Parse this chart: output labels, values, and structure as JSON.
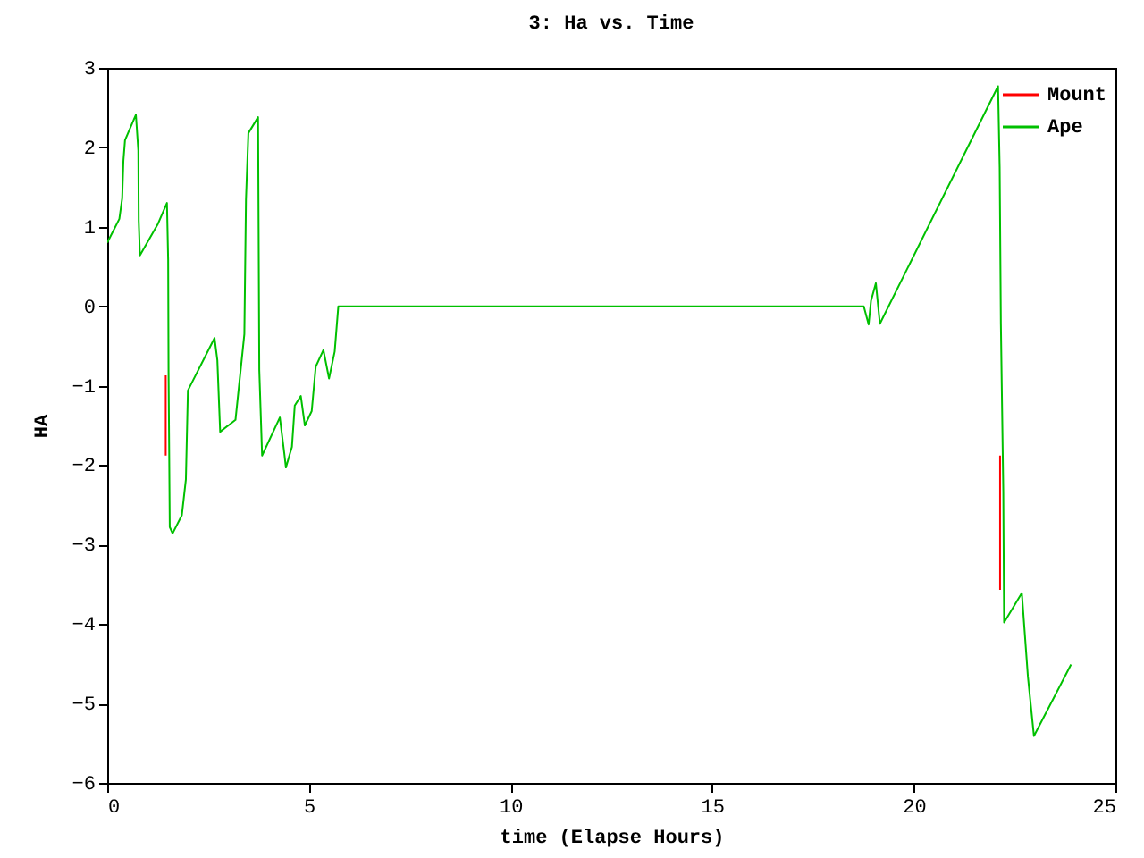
{
  "chart_data": {
    "type": "line",
    "title": "3: Ha vs. Time",
    "xlabel": "time (Elapse Hours)",
    "ylabel": "HA",
    "xlim": [
      0,
      25
    ],
    "xticks": [
      0,
      5,
      10,
      15,
      20,
      25
    ],
    "ylim": [
      -6,
      3
    ],
    "yticks": [
      -6,
      -5,
      -4,
      -3,
      -2,
      -1,
      0,
      1,
      2,
      3
    ],
    "grid": false,
    "legend": "top right",
    "line_style": "solid",
    "marker": "none",
    "series": [
      {
        "name": "Mount",
        "color": "#ff0000",
        "x": [
          1.45,
          1.45,
          1.46,
          22.14,
          22.14
        ],
        "values": [
          -0.87,
          -1.88,
          null,
          -1.88,
          -3.57
        ]
      },
      {
        "name": "Ape",
        "color": "#00c000",
        "x": [
          0,
          0.3,
          0.37,
          0.4,
          0.44,
          0.71,
          0.77,
          0.78,
          0.81,
          1.26,
          1.48,
          1.51,
          1.52,
          1.55,
          1.62,
          1.85,
          1.95,
          2.0,
          2.66,
          2.73,
          2.8,
          3.18,
          3.4,
          3.44,
          3.5,
          3.74,
          3.77,
          3.84,
          4.28,
          4.39,
          4.43,
          4.58,
          4.65,
          4.8,
          4.9,
          5.07,
          5.17,
          5.36,
          5.5,
          5.64,
          5.73,
          18.76,
          18.88,
          18.94,
          19.06,
          19.16,
          22.09,
          22.13,
          22.16,
          22.22,
          22.24,
          22.68,
          22.83,
          22.98,
          23.9
        ],
        "values": [
          0.8,
          1.1,
          1.36,
          1.83,
          2.09,
          2.41,
          1.96,
          1.08,
          0.64,
          1.04,
          1.3,
          0.59,
          -0.83,
          -2.78,
          -2.86,
          -2.63,
          -2.18,
          -1.06,
          -0.4,
          -0.68,
          -1.58,
          -1.43,
          -0.35,
          1.34,
          2.18,
          2.38,
          -0.8,
          -1.88,
          -1.4,
          -1.85,
          -2.03,
          -1.77,
          -1.25,
          -1.13,
          -1.5,
          -1.32,
          -0.76,
          -0.55,
          -0.91,
          -0.57,
          0,
          0,
          -0.23,
          0.07,
          0.29,
          -0.22,
          2.77,
          1.75,
          -0.23,
          -2.33,
          -3.98,
          -3.61,
          -4.66,
          -5.41,
          -4.51
        ]
      }
    ]
  }
}
